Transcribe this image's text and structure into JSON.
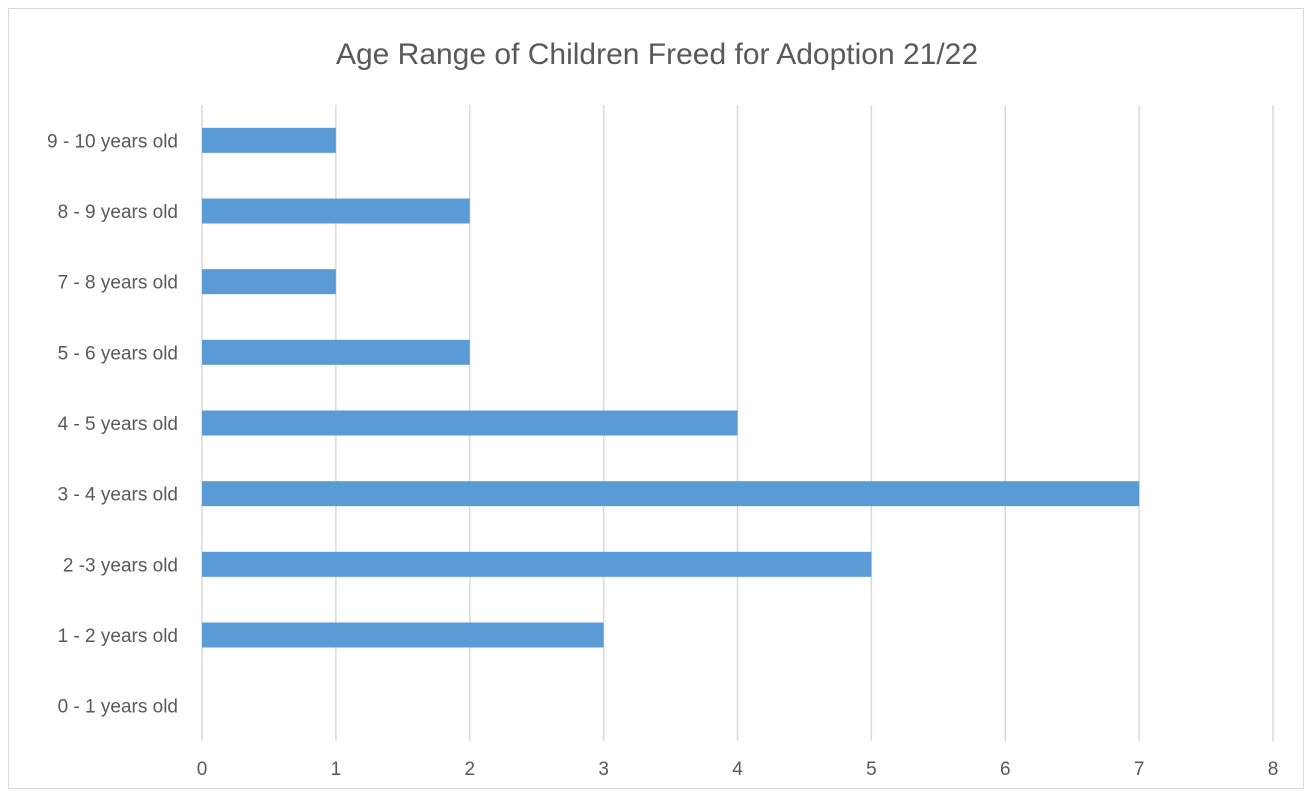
{
  "chart_data": {
    "type": "bar",
    "orientation": "horizontal",
    "title": "Age Range of Children Freed for Adoption 21/22",
    "xlabel": "",
    "ylabel": "",
    "categories": [
      "0 - 1 years old",
      "1 - 2 years old",
      "2 -3 years old",
      "3 - 4 years old",
      "4 - 5 years old",
      "5 - 6 years old",
      "7 - 8 years old",
      "8 - 9 years old",
      "9 - 10 years old"
    ],
    "values": [
      0,
      3,
      5,
      7,
      4,
      2,
      1,
      2,
      1
    ],
    "xlim": [
      0,
      8
    ],
    "x_ticks": [
      "0",
      "1",
      "2",
      "3",
      "4",
      "5",
      "6",
      "7",
      "8"
    ],
    "grid": "vertical",
    "legend": "none",
    "bar_color": "#5b9bd5"
  }
}
